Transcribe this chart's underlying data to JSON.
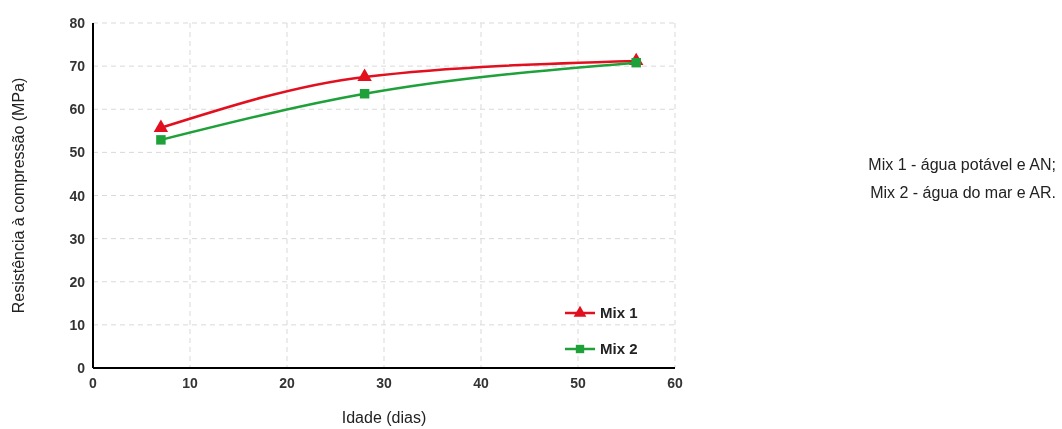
{
  "chart_data": {
    "type": "line",
    "xlabel": "Idade (dias)",
    "ylabel": "Resistência à compressão (MPa)",
    "x": [
      7,
      28,
      56
    ],
    "xlim": [
      0,
      60
    ],
    "xticks": [
      0,
      10,
      20,
      30,
      40,
      50,
      60
    ],
    "ylim": [
      0,
      80
    ],
    "yticks": [
      0,
      10,
      20,
      30,
      40,
      50,
      60,
      70,
      80
    ],
    "grid": true,
    "legend": "bottom right",
    "series": [
      {
        "name": "Mix 1",
        "color": "#e2101f",
        "marker": "triangle",
        "values": [
          55.7,
          67.5,
          71.2
        ]
      },
      {
        "name": "Mix 2",
        "color": "#1fa13a",
        "marker": "square",
        "values": [
          52.9,
          63.6,
          70.8
        ]
      }
    ],
    "annotations": [
      "Mix 1 - água potável e AN;",
      "Mix 2 - água do mar e AR."
    ]
  }
}
